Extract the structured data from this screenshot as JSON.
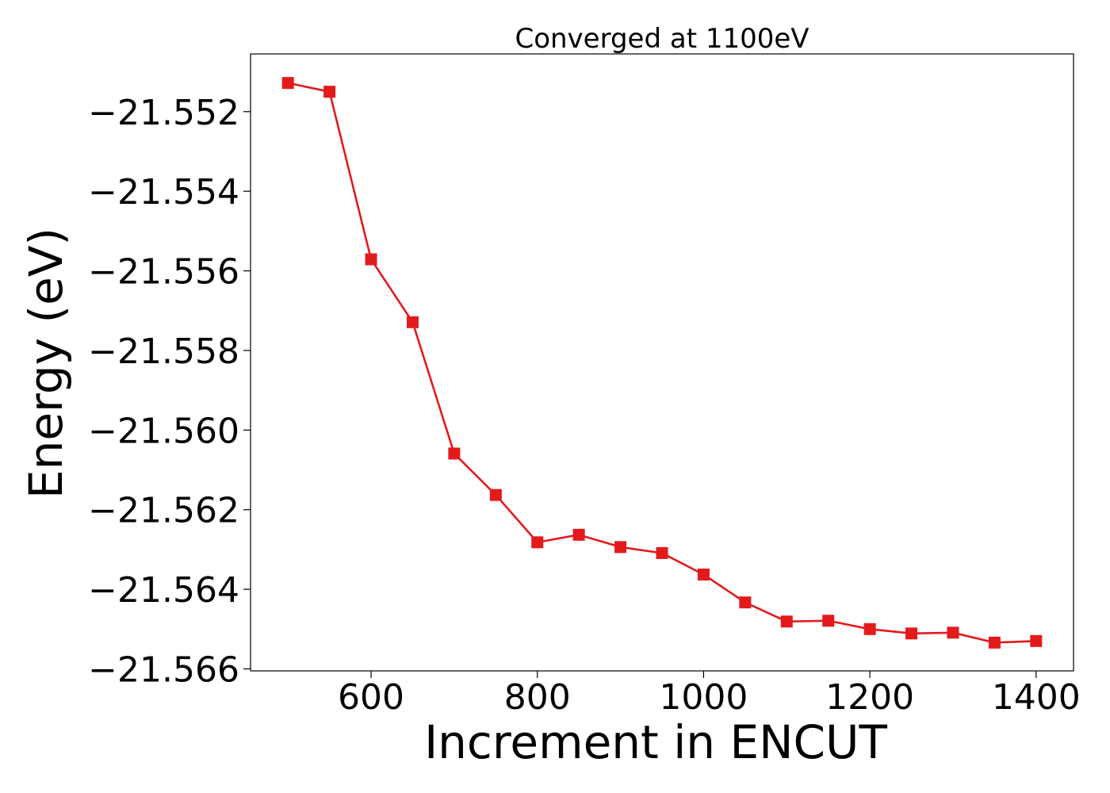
{
  "chart_data": {
    "type": "line",
    "title": "Converged at 1100eV",
    "xlabel": "Increment in ENCUT",
    "ylabel": "Energy (eV)",
    "xlim": [
      455,
      1445
    ],
    "ylim": [
      -21.56605,
      -21.55055
    ],
    "xticks": [
      600,
      800,
      1000,
      1200,
      1400
    ],
    "xtick_labels": [
      "600",
      "800",
      "1000",
      "1200",
      "1400"
    ],
    "yticks": [
      -21.552,
      -21.554,
      -21.556,
      -21.558,
      -21.56,
      -21.562,
      -21.564,
      -21.566
    ],
    "ytick_labels": [
      "−21.552",
      "−21.554",
      "−21.556",
      "−21.558",
      "−21.560",
      "−21.562",
      "−21.564",
      "−21.566"
    ],
    "grid": false,
    "series": [
      {
        "color": "#e31a1c",
        "marker": "square",
        "x": [
          500,
          550,
          600,
          650,
          700,
          750,
          800,
          850,
          900,
          950,
          1000,
          1050,
          1100,
          1150,
          1200,
          1250,
          1300,
          1350,
          1400
        ],
        "y": [
          -21.55128,
          -21.5515,
          -21.55571,
          -21.55729,
          -21.56059,
          -21.56163,
          -21.56282,
          -21.56263,
          -21.56294,
          -21.56309,
          -21.56363,
          -21.56433,
          -21.56481,
          -21.56479,
          -21.565,
          -21.56511,
          -21.56509,
          -21.56534,
          -21.5653
        ]
      }
    ]
  }
}
